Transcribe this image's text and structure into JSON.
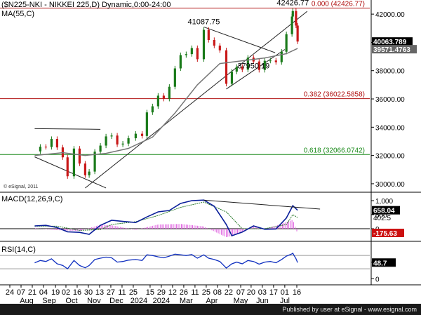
{
  "chart_data": [
    {
      "type": "candlestick",
      "title": "($N225-NKI - NIKKEI 225,D) Dynamic,0:00-24:00",
      "moving_average_label": "MA(55,C)",
      "copyright": "© eSignal, 2011",
      "ylim": [
        29500,
        42800
      ],
      "y_ticks": [
        30000,
        32000,
        34000,
        36000,
        38000,
        40000,
        42000
      ],
      "y_tick_labels": [
        "30000.00",
        "32000.00",
        "34000.00",
        "36000.00",
        "38000.00",
        "40000.00",
        "42000.00"
      ],
      "last_price": "40063.789",
      "ma_value": "39571.4763",
      "annotations": [
        {
          "text": "42426.77",
          "x": "2024-07-11",
          "y": 42426.77
        },
        {
          "text": "41087.75",
          "x": "2024-03-22",
          "y": 41087.75
        },
        {
          "text": "37950.19",
          "x": "2024-05-23",
          "y": 37950.19
        }
      ],
      "fib_levels": [
        {
          "label": "0.000 (42426.77)",
          "value": 42426.77,
          "color": "#b01010"
        },
        {
          "label": "0.382 (36022.5858)",
          "value": 36022.5858,
          "color": "#b01010"
        },
        {
          "label": "0.618 (32066.0742)",
          "value": 32066.0742,
          "color": "#1a8a1a"
        }
      ],
      "close_series": [
        [
          "2023-08-24",
          32290
        ],
        [
          "2023-08-31",
          32620
        ],
        [
          "2023-09-07",
          32600
        ],
        [
          "2023-09-14",
          33170
        ],
        [
          "2023-09-21",
          32570
        ],
        [
          "2023-09-28",
          31870
        ],
        [
          "2023-10-04",
          30530
        ],
        [
          "2023-10-12",
          32490
        ],
        [
          "2023-10-19",
          31430
        ],
        [
          "2023-10-26",
          30600
        ],
        [
          "2023-10-31",
          30860
        ],
        [
          "2023-11-07",
          32270
        ],
        [
          "2023-11-14",
          32700
        ],
        [
          "2023-11-21",
          33350
        ],
        [
          "2023-11-28",
          33410
        ],
        [
          "2023-12-05",
          32780
        ],
        [
          "2023-12-12",
          32840
        ],
        [
          "2023-12-19",
          33220
        ],
        [
          "2023-12-28",
          33540
        ],
        [
          "2024-01-05",
          33380
        ],
        [
          "2024-01-11",
          35050
        ],
        [
          "2024-01-18",
          35480
        ],
        [
          "2024-01-25",
          36230
        ],
        [
          "2024-02-01",
          36010
        ],
        [
          "2024-02-08",
          36860
        ],
        [
          "2024-02-15",
          38160
        ],
        [
          "2024-02-22",
          39100
        ],
        [
          "2024-02-29",
          39170
        ],
        [
          "2024-03-07",
          39600
        ],
        [
          "2024-03-14",
          38810
        ],
        [
          "2024-03-22",
          40890
        ],
        [
          "2024-03-28",
          40170
        ],
        [
          "2024-04-04",
          39770
        ],
        [
          "2024-04-11",
          39440
        ],
        [
          "2024-04-19",
          37070
        ],
        [
          "2024-04-26",
          37930
        ],
        [
          "2024-05-02",
          38270
        ],
        [
          "2024-05-09",
          38070
        ],
        [
          "2024-05-16",
          38920
        ],
        [
          "2024-05-23",
          38650
        ],
        [
          "2024-05-30",
          38050
        ],
        [
          "2024-06-06",
          38700
        ],
        [
          "2024-06-13",
          38720
        ],
        [
          "2024-06-20",
          38600
        ],
        [
          "2024-06-27",
          39340
        ],
        [
          "2024-07-03",
          40580
        ],
        [
          "2024-07-10",
          41830
        ],
        [
          "2024-07-11",
          42220
        ],
        [
          "2024-07-15",
          41190
        ],
        [
          "2024-07-17",
          40060
        ]
      ],
      "ma_series": [
        [
          "2023-08-24",
          32000
        ],
        [
          "2023-09-28",
          32200
        ],
        [
          "2023-10-26",
          32000
        ],
        [
          "2023-11-21",
          32150
        ],
        [
          "2023-12-19",
          32500
        ],
        [
          "2024-01-18",
          33300
        ],
        [
          "2024-02-15",
          35000
        ],
        [
          "2024-03-14",
          37000
        ],
        [
          "2024-04-11",
          38500
        ],
        [
          "2024-05-09",
          38700
        ],
        [
          "2024-06-06",
          38900
        ],
        [
          "2024-07-03",
          39200
        ],
        [
          "2024-07-17",
          39571
        ]
      ],
      "trendlines": [
        {
          "from": [
            "2023-08-24",
            33900
          ],
          "to": [
            "2023-11-14",
            33850
          ]
        },
        {
          "from": [
            "2023-08-24",
            31900
          ],
          "to": [
            "2023-11-21",
            29700
          ]
        },
        {
          "from": [
            "2023-10-26",
            29700
          ],
          "to": [
            "2024-07-29",
            42200
          ]
        },
        {
          "from": [
            "2024-03-22",
            41090
          ],
          "to": [
            "2024-06-19",
            39270
          ]
        },
        {
          "from": [
            "2024-04-19",
            36700
          ],
          "to": [
            "2024-07-01",
            39500
          ]
        }
      ]
    },
    {
      "type": "line",
      "title": "MACD(12,26,9,C)",
      "ylim": [
        -350,
        1200
      ],
      "y_ticks": [
        0,
        500,
        1000
      ],
      "y_tick_labels": [
        "0",
        "500",
        "1,000"
      ],
      "macd_value": "658.04",
      "signal_value": "402.5",
      "histogram_value": "-175.63",
      "macd": [
        [
          "2023-08-24",
          100
        ],
        [
          "2023-09-07",
          120
        ],
        [
          "2023-09-21",
          40
        ],
        [
          "2023-10-04",
          -110
        ],
        [
          "2023-10-19",
          -130
        ],
        [
          "2023-10-31",
          -200
        ],
        [
          "2023-11-14",
          120
        ],
        [
          "2023-11-28",
          300
        ],
        [
          "2023-12-12",
          260
        ],
        [
          "2023-12-28",
          220
        ],
        [
          "2024-01-11",
          420
        ],
        [
          "2024-01-25",
          600
        ],
        [
          "2024-02-08",
          650
        ],
        [
          "2024-02-22",
          900
        ],
        [
          "2024-03-07",
          1000
        ],
        [
          "2024-03-22",
          1020
        ],
        [
          "2024-04-04",
          800
        ],
        [
          "2024-04-19",
          150
        ],
        [
          "2024-04-26",
          -250
        ],
        [
          "2024-05-09",
          -120
        ],
        [
          "2024-05-23",
          100
        ],
        [
          "2024-06-06",
          -20
        ],
        [
          "2024-06-20",
          -10
        ],
        [
          "2024-07-03",
          380
        ],
        [
          "2024-07-11",
          820
        ],
        [
          "2024-07-17",
          658
        ]
      ],
      "signal": [
        [
          "2023-08-24",
          90
        ],
        [
          "2023-09-21",
          90
        ],
        [
          "2023-10-19",
          -60
        ],
        [
          "2023-11-14",
          -30
        ],
        [
          "2023-11-28",
          150
        ],
        [
          "2023-12-28",
          250
        ],
        [
          "2024-01-25",
          470
        ],
        [
          "2024-02-22",
          760
        ],
        [
          "2024-03-22",
          950
        ],
        [
          "2024-04-19",
          600
        ],
        [
          "2024-05-09",
          0
        ],
        [
          "2024-06-06",
          0
        ],
        [
          "2024-07-03",
          150
        ],
        [
          "2024-07-11",
          500
        ],
        [
          "2024-07-17",
          402.5
        ]
      ],
      "histogram": [
        [
          "2023-08-24",
          20
        ],
        [
          "2023-09-21",
          -50
        ],
        [
          "2023-10-19",
          -80
        ],
        [
          "2023-11-14",
          140
        ],
        [
          "2023-11-28",
          120
        ],
        [
          "2023-12-28",
          -40
        ],
        [
          "2024-01-25",
          150
        ],
        [
          "2024-02-22",
          170
        ],
        [
          "2024-03-22",
          80
        ],
        [
          "2024-04-19",
          -300
        ],
        [
          "2024-04-26",
          -260
        ],
        [
          "2024-05-09",
          -120
        ],
        [
          "2024-05-23",
          80
        ],
        [
          "2024-06-06",
          -20
        ],
        [
          "2024-07-03",
          230
        ],
        [
          "2024-07-11",
          320
        ],
        [
          "2024-07-17",
          -175.63
        ]
      ],
      "trendline": {
        "from": [
          "2024-03-22",
          1020
        ],
        "to": [
          "2024-08-14",
          700
        ]
      }
    },
    {
      "type": "line",
      "title": "RSI(14,C)",
      "ylim": [
        -10,
        100
      ],
      "y_ticks": [
        0,
        50
      ],
      "y_tick_labels": [
        "0",
        "50"
      ],
      "level_lines": [
        70,
        30
      ],
      "rsi_value": "48.7",
      "rsi": [
        [
          "2023-08-24",
          48
        ],
        [
          "2023-08-31",
          55
        ],
        [
          "2023-09-07",
          52
        ],
        [
          "2023-09-14",
          60
        ],
        [
          "2023-09-21",
          45
        ],
        [
          "2023-09-28",
          40
        ],
        [
          "2023-10-04",
          30
        ],
        [
          "2023-10-12",
          55
        ],
        [
          "2023-10-19",
          40
        ],
        [
          "2023-10-26",
          33
        ],
        [
          "2023-10-31",
          40
        ],
        [
          "2023-11-07",
          58
        ],
        [
          "2023-11-14",
          62
        ],
        [
          "2023-11-21",
          65
        ],
        [
          "2023-11-28",
          63
        ],
        [
          "2023-12-05",
          50
        ],
        [
          "2023-12-12",
          52
        ],
        [
          "2023-12-19",
          56
        ],
        [
          "2023-12-28",
          58
        ],
        [
          "2024-01-05",
          55
        ],
        [
          "2024-01-11",
          72
        ],
        [
          "2024-01-18",
          70
        ],
        [
          "2024-01-25",
          66
        ],
        [
          "2024-02-01",
          63
        ],
        [
          "2024-02-08",
          68
        ],
        [
          "2024-02-15",
          74
        ],
        [
          "2024-02-22",
          72
        ],
        [
          "2024-02-29",
          70
        ],
        [
          "2024-03-07",
          73
        ],
        [
          "2024-03-14",
          62
        ],
        [
          "2024-03-22",
          72
        ],
        [
          "2024-03-28",
          62
        ],
        [
          "2024-04-04",
          58
        ],
        [
          "2024-04-11",
          52
        ],
        [
          "2024-04-19",
          32
        ],
        [
          "2024-04-26",
          45
        ],
        [
          "2024-05-02",
          50
        ],
        [
          "2024-05-09",
          45
        ],
        [
          "2024-05-16",
          55
        ],
        [
          "2024-05-23",
          52
        ],
        [
          "2024-05-30",
          44
        ],
        [
          "2024-06-06",
          50
        ],
        [
          "2024-06-13",
          52
        ],
        [
          "2024-06-20",
          48
        ],
        [
          "2024-06-27",
          58
        ],
        [
          "2024-07-03",
          68
        ],
        [
          "2024-07-10",
          75
        ],
        [
          "2024-07-11",
          77
        ],
        [
          "2024-07-15",
          60
        ],
        [
          "2024-07-17",
          48.7
        ]
      ]
    }
  ],
  "x_axis": {
    "date_ticks": [
      {
        "label": "24",
        "date": "2023-07-24"
      },
      {
        "label": "07",
        "date": "2023-08-07"
      },
      {
        "label": "21",
        "date": "2023-08-21"
      },
      {
        "label": "04",
        "date": "2023-09-04"
      },
      {
        "label": "19",
        "date": "2023-09-19"
      },
      {
        "label": "02",
        "date": "2023-10-02"
      },
      {
        "label": "16",
        "date": "2023-10-16"
      },
      {
        "label": "30",
        "date": "2023-10-30"
      },
      {
        "label": "13",
        "date": "2023-11-13"
      },
      {
        "label": "27",
        "date": "2023-11-27"
      },
      {
        "label": "11",
        "date": "2023-12-11"
      },
      {
        "label": "25",
        "date": "2023-12-25"
      },
      {
        "label": "15",
        "date": "2024-01-15"
      },
      {
        "label": "29",
        "date": "2024-01-29"
      },
      {
        "label": "12",
        "date": "2024-02-12"
      },
      {
        "label": "26",
        "date": "2024-02-26"
      },
      {
        "label": "11",
        "date": "2024-03-11"
      },
      {
        "label": "25",
        "date": "2024-03-25"
      },
      {
        "label": "08",
        "date": "2024-04-08"
      },
      {
        "label": "22",
        "date": "2024-04-22"
      },
      {
        "label": "07",
        "date": "2024-05-07"
      },
      {
        "label": "20",
        "date": "2024-05-20"
      },
      {
        "label": "03",
        "date": "2024-06-03"
      },
      {
        "label": "17",
        "date": "2024-06-17"
      },
      {
        "label": "01",
        "date": "2024-07-01"
      },
      {
        "label": "16",
        "date": "2024-07-16"
      }
    ],
    "period_labels": [
      {
        "label": "Aug",
        "date": "2023-08-14"
      },
      {
        "label": "Sep",
        "date": "2023-09-11"
      },
      {
        "label": "Oct",
        "date": "2023-10-09"
      },
      {
        "label": "Nov",
        "date": "2023-11-06"
      },
      {
        "label": "Dec",
        "date": "2023-12-04"
      },
      {
        "label": "2024",
        "date": "2024-01-01"
      },
      {
        "label": "2024",
        "date": "2024-01-29"
      },
      {
        "label": "Mar",
        "date": "2024-02-29"
      },
      {
        "label": "Apr",
        "date": "2024-04-01"
      },
      {
        "label": "May",
        "date": "2024-05-07"
      },
      {
        "label": "Jun",
        "date": "2024-06-03"
      },
      {
        "label": "Jul",
        "date": "2024-07-01"
      }
    ]
  },
  "colors": {
    "candle_up": "#1a7a1a",
    "candle_down": "#c81818",
    "ma_line": "#777777",
    "trendline": "#222222",
    "macd_line": "#0a1f9a",
    "signal_line": "#2a7a2a",
    "histogram": "#e060e0",
    "rsi_line": "#1030c0",
    "price_box": "#000000",
    "ma_box": "#666666",
    "neg_box": "#cc1010"
  },
  "footer": {
    "text": "Published by user at eSignal - www.esignal.com"
  }
}
